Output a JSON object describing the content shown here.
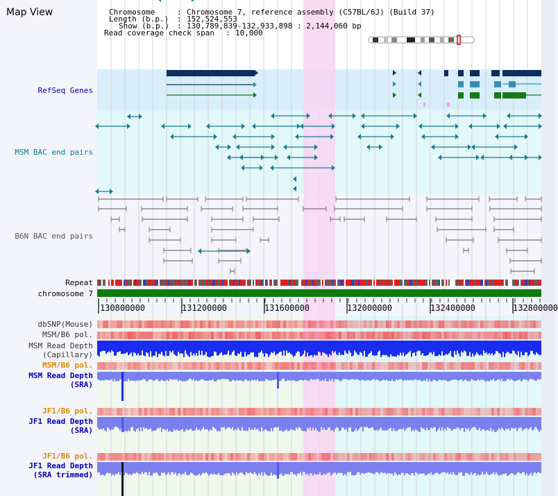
{
  "title": "Map View",
  "header": {
    "chromosome_label": "Chromosome",
    "chromosome_value": "Chromosome 7, reference assembly (C57BL/6J) (Build 37)",
    "length_label": "Length (b.p.)",
    "length_value": "152,524,553",
    "show_label": "Show (b.p.)",
    "show_value": "130,789,839-132,933,898 : 2,144,060 bp",
    "coverage_label": "Read coverage check span",
    "coverage_value": "10,000"
  },
  "tracks": {
    "refseq": "RefSeq Genes",
    "msm_bac": "MSM BAC end pairs",
    "b6n_bac": "B6N BAC end pairs",
    "repeat": "Repeat",
    "chromosome": "chromosome 7",
    "dbsnp": "dbSNP(Mouse)",
    "msm_b6_pol_1": "MSM/B6 pol.",
    "msm_read_depth_cap_1": "MSM Read Depth",
    "msm_read_depth_cap_2": "(Capillary)",
    "msm_b6_pol_2": "MSM/B6 pol.",
    "msm_read_depth_sra_1": "MSM Read Depth",
    "msm_read_depth_sra_2": "(SRA)",
    "jf1_b6_pol_1": "JF1/B6 pol.",
    "jf1_read_depth_sra_1": "JF1 Read Depth",
    "jf1_read_depth_sra_2": "(SRA)",
    "jf1_b6_pol_2": "JF1/B6 pol.",
    "jf1_read_depth_trim_1": "JF1 Read Depth",
    "jf1_read_depth_trim_2": "(SRA trimmed)"
  },
  "axis": {
    "ticks": [
      "130800000",
      "131200000",
      "131600000",
      "132000000",
      "132400000",
      "132800000"
    ]
  },
  "colors": {
    "refseq_bg": "#d8eefa",
    "bac_bg": "#e2f8fa",
    "highlight": "#f8d6f2",
    "gene_dark": "#0d2d5a",
    "gene_mid": "#3c8cbb",
    "gene_green": "#157a17",
    "msm_bac_line": "#1a7c8c",
    "b6n_bac_line": "#777777",
    "chromosome_bar": "#0f7a0f",
    "depth_capillary": "#1a2cf0",
    "depth_sra": "#7b80ee",
    "snp_red": "#f05a5a",
    "label_blue": "#0000b4",
    "label_teal": "#007a8c",
    "label_orange": "#e08800"
  }
}
